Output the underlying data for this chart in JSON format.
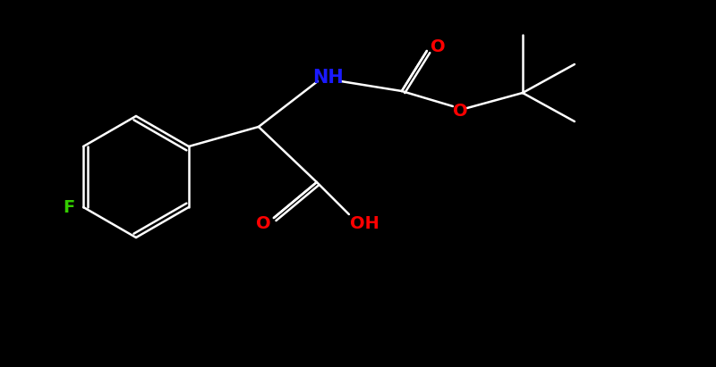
{
  "bg_color": "#000000",
  "fig_width": 8.0,
  "fig_height": 4.11,
  "dpi": 100,
  "bond_color": "#ffffff",
  "bond_width": 1.8,
  "atom_colors": {
    "O": "#ff0000",
    "N": "#1a1aff",
    "F": "#33cc00",
    "C": "#ffffff",
    "H": "#ffffff"
  },
  "font_size": 14,
  "font_weight": "bold"
}
